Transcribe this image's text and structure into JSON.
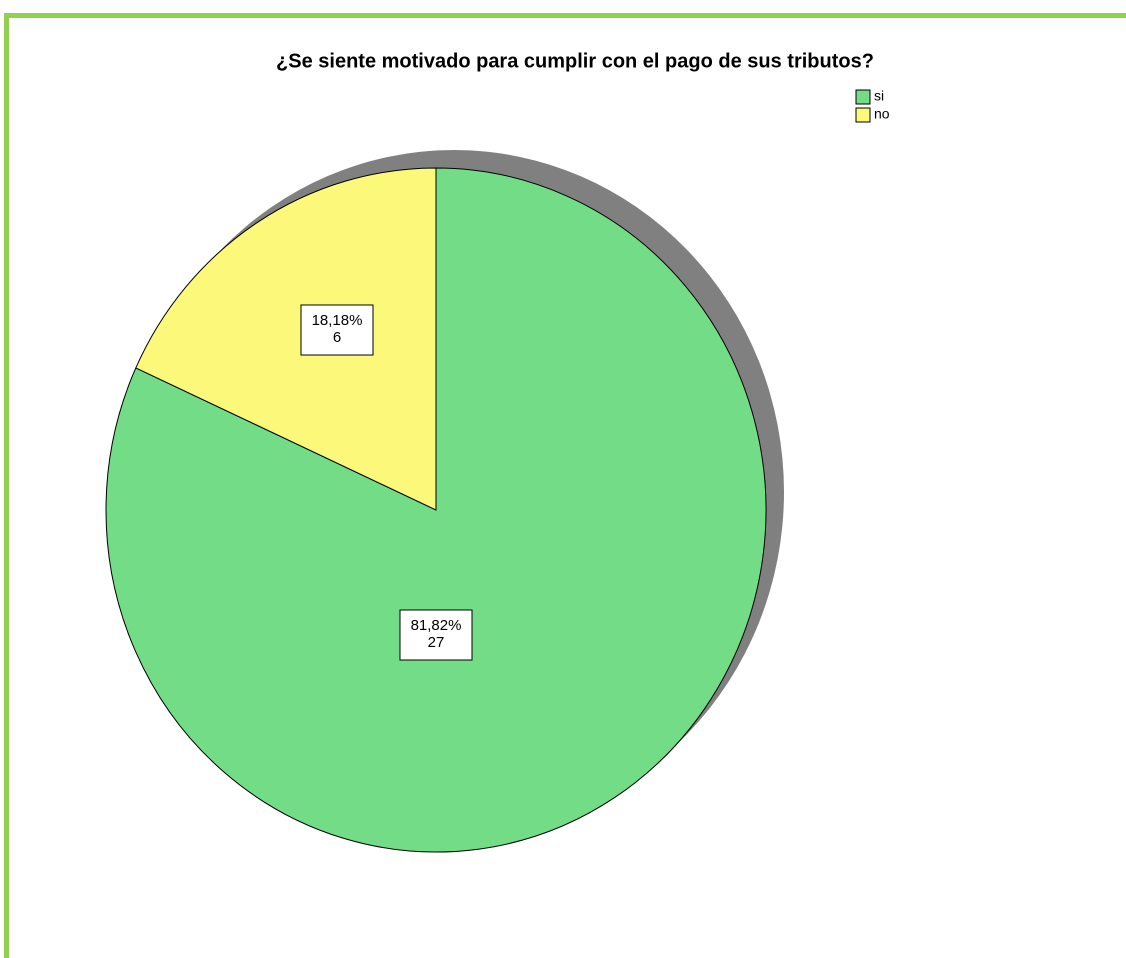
{
  "chart_data": {
    "type": "pie",
    "title": "¿Se siente motivado para cumplir con el pago de sus tributos?",
    "categories": [
      "si",
      "no"
    ],
    "values": [
      27,
      6
    ],
    "percentages": [
      81.82,
      18.18
    ],
    "percentage_labels": [
      "81,82%",
      "18,18%"
    ],
    "colors": [
      "#72dc86",
      "#fbf87a"
    ],
    "legend": "top-right"
  }
}
